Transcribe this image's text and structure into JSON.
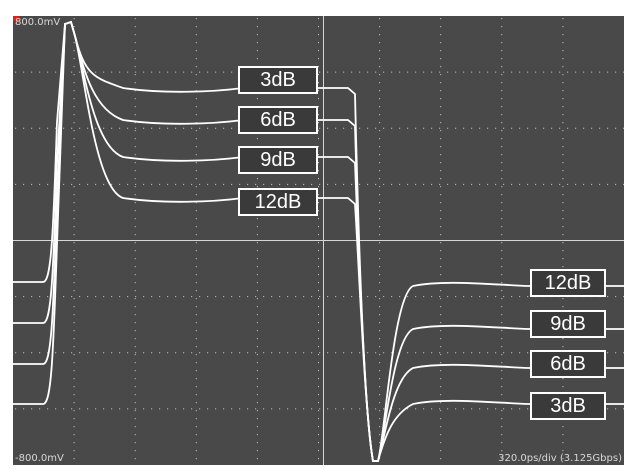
{
  "screen": {
    "vertical_max": "800.0mV",
    "vertical_min": "-800.0mV",
    "timebase": "320.0ps/div (3.125Gbps)",
    "colors": {
      "screen_bg": "#494949",
      "grid_dots": "#bdbdbd",
      "trace": "#ffffff",
      "marker": "#e02020"
    }
  },
  "labels": {
    "upper": [
      "3dB",
      "6dB",
      "9dB",
      "12dB"
    ],
    "lower": [
      "12dB",
      "9dB",
      "6dB",
      "3dB"
    ]
  },
  "chart_data": {
    "type": "line",
    "title": "",
    "xlabel": "",
    "ylabel": "",
    "ylim": [
      -800,
      800
    ],
    "y_unit": "mV",
    "time_per_div": "320.0ps",
    "grid": true,
    "series": [
      {
        "name": "3dB"
      },
      {
        "name": "6dB"
      },
      {
        "name": "9dB"
      },
      {
        "name": "12dB"
      }
    ]
  }
}
